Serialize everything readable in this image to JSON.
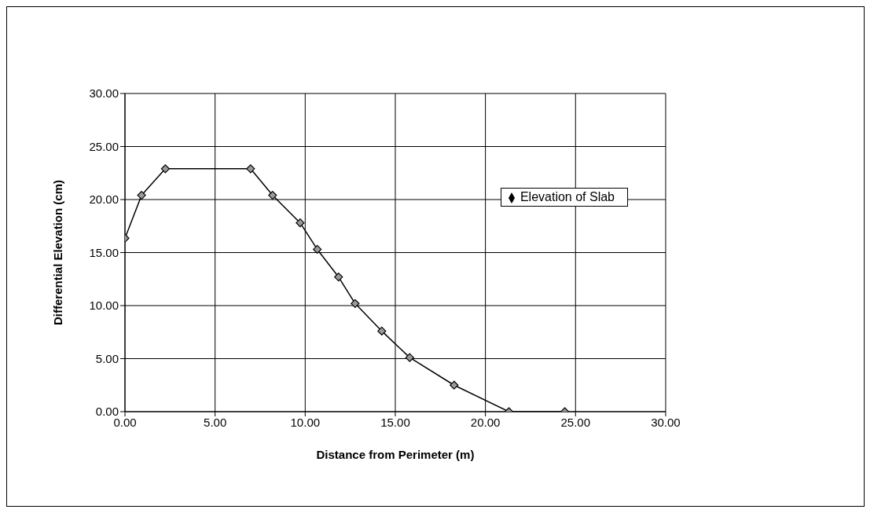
{
  "chart_data": {
    "type": "line",
    "xlabel": "Distance from Perimeter (m)",
    "ylabel": "Differential Elevation (cm)",
    "x": [
      0,
      0.92,
      2.24,
      6.97,
      8.19,
      9.72,
      10.67,
      11.85,
      12.77,
      14.25,
      15.8,
      18.26,
      21.3,
      24.4
    ],
    "series": [
      {
        "name": "Elevation of Slab",
        "color": "#000000",
        "values": [
          16.35,
          20.4,
          22.9,
          22.9,
          20.4,
          17.8,
          15.3,
          12.7,
          10.2,
          7.6,
          5.1,
          2.5,
          0,
          0
        ]
      }
    ],
    "xlim": [
      0,
      30
    ],
    "ylim": [
      0,
      30
    ],
    "xticks": [
      {
        "value": 0,
        "label": "0.00"
      },
      {
        "value": 5,
        "label": "5.00"
      },
      {
        "value": 10,
        "label": "10.00"
      },
      {
        "value": 15,
        "label": "15.00"
      },
      {
        "value": 20,
        "label": "20.00"
      },
      {
        "value": 25,
        "label": "25.00"
      },
      {
        "value": 30,
        "label": "30.00"
      }
    ],
    "yticks": [
      {
        "value": 0,
        "label": "0.00"
      },
      {
        "value": 5,
        "label": "5.00"
      },
      {
        "value": 10,
        "label": "10.00"
      },
      {
        "value": 15,
        "label": "15.00"
      },
      {
        "value": 20,
        "label": "20.00"
      },
      {
        "value": 25,
        "label": "25.00"
      },
      {
        "value": 30,
        "label": "30.00"
      }
    ],
    "grid": true,
    "legend": "right",
    "marker": "diamond",
    "line_style": "solid"
  }
}
